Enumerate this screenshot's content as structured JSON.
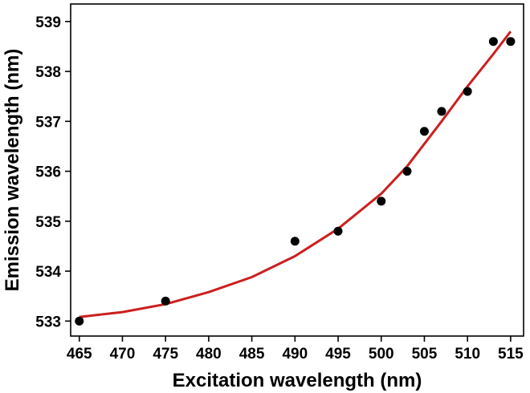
{
  "chart_data": {
    "type": "scatter",
    "xlabel": "Excitation wavelength (nm)",
    "ylabel": "Emission wavelength (nm)",
    "xlim": [
      464,
      516.5
    ],
    "ylim": [
      532.7,
      539.35
    ],
    "xticks": [
      465,
      470,
      475,
      480,
      485,
      490,
      495,
      500,
      505,
      510,
      515
    ],
    "yticks": [
      533,
      534,
      535,
      536,
      537,
      538,
      539
    ],
    "grid": false,
    "legend": "none",
    "points": {
      "x": [
        465,
        475,
        490,
        495,
        500,
        503,
        505,
        507,
        510,
        513,
        515
      ],
      "y": [
        533.0,
        533.4,
        534.6,
        534.8,
        535.4,
        536.0,
        536.8,
        537.2,
        537.6,
        538.6,
        538.6
      ],
      "color": "#000000"
    },
    "fit": {
      "x": [
        465,
        470,
        475,
        480,
        485,
        490,
        495,
        500,
        503,
        505,
        507,
        510,
        513,
        515
      ],
      "y": [
        533.08,
        533.18,
        533.34,
        533.58,
        533.88,
        534.3,
        534.85,
        535.55,
        536.1,
        536.55,
        537.0,
        537.7,
        538.35,
        538.8
      ],
      "color": "#cc1f1f"
    }
  }
}
